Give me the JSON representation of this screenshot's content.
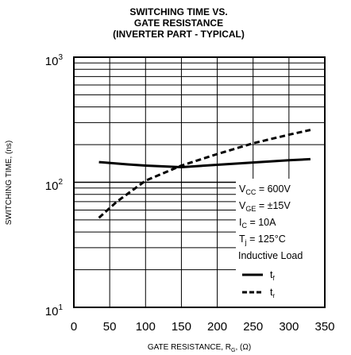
{
  "chart_data": {
    "type": "line",
    "title_lines": [
      "SWITCHING TIME VS.",
      "GATE RESISTANCE",
      "(INVERTER PART - TYPICAL)"
    ],
    "xlabel": {
      "main": "GATE RESISTANCE, R",
      "sub": "G",
      "unit": ", (Ω)"
    },
    "ylabel": "SWITCHING TIME, (ns)",
    "xlim": [
      0,
      350
    ],
    "ylim": [
      10,
      1000
    ],
    "yscale": "log",
    "x_ticks": [
      "0",
      "50",
      "100",
      "150",
      "200",
      "250",
      "300",
      "350"
    ],
    "y_ticks": [
      {
        "base": "10",
        "exp": "1"
      },
      {
        "base": "10",
        "exp": "2"
      },
      {
        "base": "10",
        "exp": "3"
      }
    ],
    "grid": true,
    "conditions": [
      {
        "main": "V",
        "sub": "CC",
        "rest": " = 600V"
      },
      {
        "main": "V",
        "sub": "GE",
        "rest": " = ±15V"
      },
      {
        "main": "I",
        "sub": "C",
        "rest": " = 10A"
      },
      {
        "main": "T",
        "sub": "j",
        "rest": " = 125°C"
      },
      {
        "main": "Inductive Load",
        "sub": "",
        "rest": ""
      }
    ],
    "series": [
      {
        "name": "t",
        "sub": "f",
        "style": "solid",
        "x": [
          35,
          75,
          100,
          150,
          200,
          250,
          300,
          330
        ],
        "y": [
          145,
          139,
          136,
          132,
          138,
          144,
          150,
          153
        ]
      },
      {
        "name": "t",
        "sub": "r",
        "style": "dashed",
        "x": [
          35,
          60,
          100,
          150,
          200,
          250,
          300,
          330
        ],
        "y": [
          52,
          70,
          103,
          136,
          168,
          205,
          240,
          262
        ]
      }
    ]
  }
}
